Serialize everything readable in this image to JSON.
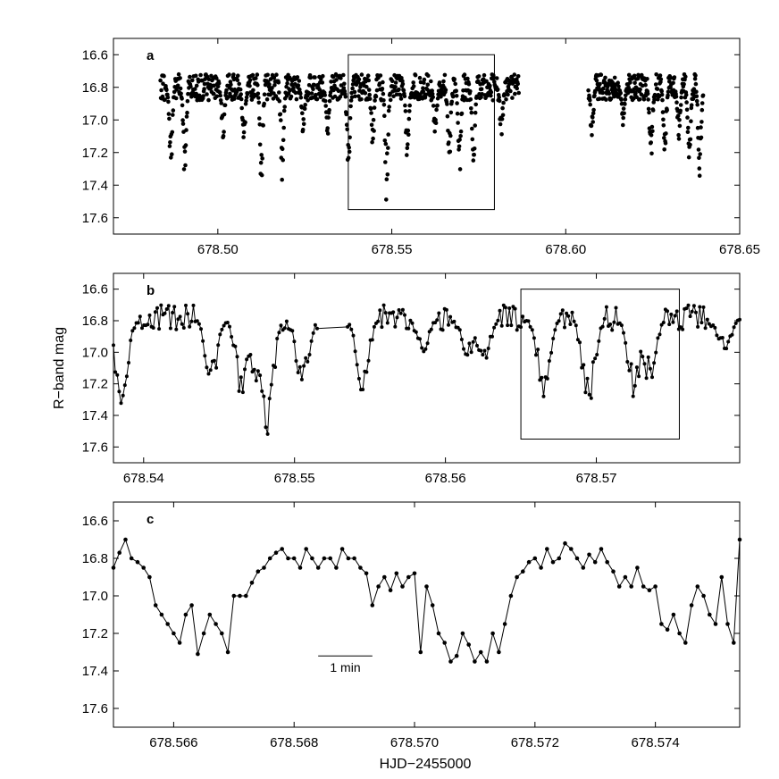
{
  "figure": {
    "ylabel": "R−band mag",
    "xlabel": "HJD−2455000",
    "scale_bar_label": "1 min"
  },
  "chart_data": [
    {
      "panel": "a",
      "type": "scatter",
      "xlim": [
        678.47,
        678.65
      ],
      "ylim": [
        17.7,
        16.5
      ],
      "y_inverted": true,
      "xticks": [
        "678.50",
        "678.55",
        "678.60",
        "678.65"
      ],
      "xtick_values": [
        678.5,
        678.55,
        678.6,
        678.65
      ],
      "yticks": [
        "16.6",
        "16.8",
        "17.0",
        "17.2",
        "17.4",
        "17.6"
      ],
      "ytick_values": [
        16.6,
        16.8,
        17.0,
        17.2,
        17.4,
        17.6
      ],
      "zoom_box": {
        "x": [
          678.5375,
          678.5795
        ],
        "y": [
          16.6,
          17.55
        ]
      },
      "segments": [
        {
          "x_start": 678.4835,
          "x_end": 678.5865,
          "n_points": 820,
          "baseline": 16.8,
          "dips": [
            {
              "x": 678.4865,
              "depth": 17.32
            },
            {
              "x": 678.4905,
              "depth": 17.38
            },
            {
              "x": 678.5015,
              "depth": 17.12
            },
            {
              "x": 678.5075,
              "depth": 17.16
            },
            {
              "x": 678.5125,
              "depth": 17.43
            },
            {
              "x": 678.5185,
              "depth": 17.38
            },
            {
              "x": 678.5245,
              "depth": 17.12
            },
            {
              "x": 678.5315,
              "depth": 17.12
            },
            {
              "x": 678.5375,
              "depth": 17.38
            },
            {
              "x": 678.5445,
              "depth": 17.22
            },
            {
              "x": 678.5485,
              "depth": 17.52
            },
            {
              "x": 678.5545,
              "depth": 17.3
            },
            {
              "x": 678.5625,
              "depth": 17.15
            },
            {
              "x": 678.5665,
              "depth": 17.3
            },
            {
              "x": 678.5695,
              "depth": 17.38
            },
            {
              "x": 678.5735,
              "depth": 17.35
            },
            {
              "x": 678.5815,
              "depth": 17.12
            }
          ]
        },
        {
          "x_start": 678.6065,
          "x_end": 678.6395,
          "n_points": 300,
          "baseline": 16.8,
          "dips": [
            {
              "x": 678.6075,
              "depth": 17.12
            },
            {
              "x": 678.6165,
              "depth": 17.05
            },
            {
              "x": 678.6245,
              "depth": 17.28
            },
            {
              "x": 678.6285,
              "depth": 17.22
            },
            {
              "x": 678.6325,
              "depth": 17.12
            },
            {
              "x": 678.6355,
              "depth": 17.3
            },
            {
              "x": 678.6385,
              "depth": 17.4
            }
          ]
        }
      ]
    },
    {
      "panel": "b",
      "type": "line",
      "xlim": [
        678.538,
        678.5795
      ],
      "ylim": [
        17.7,
        16.5
      ],
      "y_inverted": true,
      "xticks": [
        "678.54",
        "678.55",
        "678.56",
        "678.57"
      ],
      "xtick_values": [
        678.54,
        678.55,
        678.56,
        678.57
      ],
      "yticks": [
        "16.6",
        "16.8",
        "17.0",
        "17.2",
        "17.4",
        "17.6"
      ],
      "ytick_values": [
        16.6,
        16.8,
        17.0,
        17.2,
        17.4,
        17.6
      ],
      "zoom_box": {
        "x": [
          678.565,
          678.5755
        ],
        "y": [
          16.6,
          17.55
        ]
      },
      "data_gap": [
        678.5515,
        678.5535
      ],
      "n_points": 330,
      "baseline": 16.78,
      "dips": [
        {
          "x": 678.5385,
          "depth": 17.38
        },
        {
          "x": 678.5445,
          "depth": 17.25
        },
        {
          "x": 678.5465,
          "depth": 17.3
        },
        {
          "x": 678.5475,
          "depth": 17.25
        },
        {
          "x": 678.5482,
          "depth": 17.52
        },
        {
          "x": 678.5505,
          "depth": 17.25
        },
        {
          "x": 678.5545,
          "depth": 17.3
        },
        {
          "x": 678.5585,
          "depth": 17.0
        },
        {
          "x": 678.5615,
          "depth": 17.05
        },
        {
          "x": 678.5625,
          "depth": 17.12
        },
        {
          "x": 678.5665,
          "depth": 17.3
        },
        {
          "x": 678.5695,
          "depth": 17.38
        },
        {
          "x": 678.5725,
          "depth": 17.3
        },
        {
          "x": 678.5735,
          "depth": 17.22
        },
        {
          "x": 678.5785,
          "depth": 17.02
        }
      ]
    },
    {
      "panel": "c",
      "type": "line",
      "xlim": [
        678.565,
        678.5754
      ],
      "ylim": [
        17.7,
        16.5
      ],
      "y_inverted": true,
      "xticks": [
        "678.566",
        "678.568",
        "678.570",
        "678.572",
        "678.574"
      ],
      "xtick_values": [
        678.566,
        678.568,
        678.57,
        678.572,
        678.574
      ],
      "yticks": [
        "16.6",
        "16.8",
        "17.0",
        "17.2",
        "17.4",
        "17.6"
      ],
      "ytick_values": [
        16.6,
        16.8,
        17.0,
        17.2,
        17.4,
        17.6
      ],
      "x": [
        678.565,
        678.5651,
        678.5652,
        678.5653,
        678.5654,
        678.5655,
        678.5656,
        678.5657,
        678.5658,
        678.5659,
        678.566,
        678.5661,
        678.5662,
        678.5663,
        678.5664,
        678.5665,
        678.5666,
        678.5667,
        678.5668,
        678.5669,
        678.567,
        678.5671,
        678.5672,
        678.5673,
        678.5674,
        678.5675,
        678.5676,
        678.5677,
        678.5678,
        678.5679,
        678.568,
        678.5681,
        678.5682,
        678.5683,
        678.5684,
        678.5685,
        678.5686,
        678.5687,
        678.5688,
        678.5689,
        678.569,
        678.5691,
        678.5692,
        678.5693,
        678.5694,
        678.5695,
        678.5696,
        678.5697,
        678.5698,
        678.5699,
        678.57,
        678.5701,
        678.5702,
        678.5703,
        678.5704,
        678.5705,
        678.5706,
        678.5707,
        678.5708,
        678.5709,
        678.571,
        678.5711,
        678.5712,
        678.5713,
        678.5714,
        678.5715,
        678.5716,
        678.5717,
        678.5718,
        678.5719,
        678.572,
        678.5721,
        678.5722,
        678.5723,
        678.5724,
        678.5725,
        678.5726,
        678.5727,
        678.5728,
        678.5729,
        678.573,
        678.5731,
        678.5732,
        678.5733,
        678.5734,
        678.5735,
        678.5736,
        678.5737,
        678.5738,
        678.5739,
        678.574,
        678.5741,
        678.5742,
        678.5743,
        678.5744,
        678.5745,
        678.5746,
        678.5747,
        678.5748,
        678.5749,
        678.575,
        678.5751,
        678.5752,
        678.5753,
        678.5754
      ],
      "y": [
        16.85,
        16.77,
        16.7,
        16.8,
        16.82,
        16.85,
        16.9,
        17.05,
        17.1,
        17.15,
        17.2,
        17.25,
        17.1,
        17.05,
        17.31,
        17.2,
        17.1,
        17.15,
        17.2,
        17.3,
        17.0,
        17.0,
        17.0,
        16.93,
        16.87,
        16.85,
        16.8,
        16.77,
        16.75,
        16.8,
        16.8,
        16.85,
        16.75,
        16.8,
        16.85,
        16.8,
        16.8,
        16.85,
        16.75,
        16.8,
        16.8,
        16.85,
        16.88,
        17.05,
        16.95,
        16.9,
        16.97,
        16.88,
        16.95,
        16.9,
        16.88,
        17.3,
        16.95,
        17.05,
        17.2,
        17.25,
        17.35,
        17.32,
        17.2,
        17.26,
        17.35,
        17.3,
        17.35,
        17.2,
        17.3,
        17.15,
        17.0,
        16.9,
        16.87,
        16.82,
        16.8,
        16.85,
        16.75,
        16.82,
        16.8,
        16.72,
        16.75,
        16.8,
        16.85,
        16.78,
        16.82,
        16.75,
        16.82,
        16.87,
        16.95,
        16.9,
        16.95,
        16.85,
        16.95,
        16.97,
        16.95,
        17.15,
        17.18,
        17.1,
        17.2,
        17.25,
        17.05,
        16.95,
        17.0,
        17.1,
        17.15,
        16.9,
        17.15,
        17.25,
        16.7
      ]
    }
  ]
}
